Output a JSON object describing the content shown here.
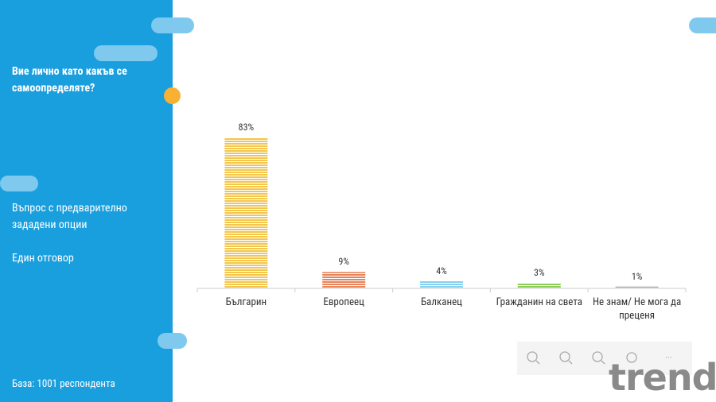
{
  "chart_data": {
    "type": "bar",
    "title": "Вие лично като какъв се самоопределяте?",
    "subtitle": "Въпрос с предварително зададени опции",
    "annotations": [
      "Един отговор",
      "База:  1001 респондента"
    ],
    "categories": [
      "Българин",
      "Европеец",
      "Балканец",
      "Гражданин на света",
      "Не знам/ Не мога да преценя"
    ],
    "values": [
      83,
      9,
      4,
      3,
      1
    ],
    "value_labels": [
      "83%",
      "9%",
      "4%",
      "3%",
      "1%"
    ],
    "colors": [
      "#f3c64b",
      "#e8845a",
      "#86d0f0",
      "#8ccd58",
      "#a8a8a8"
    ]
  },
  "logo": "trend"
}
